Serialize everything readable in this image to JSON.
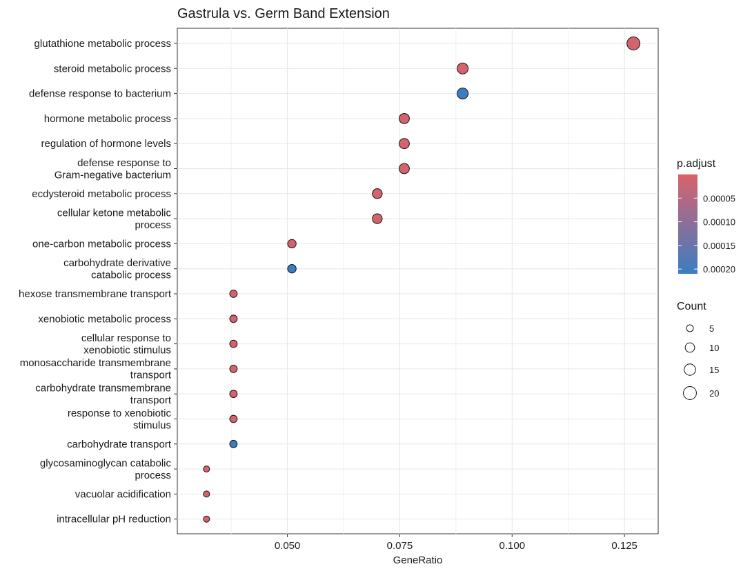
{
  "chart_data": {
    "type": "scatter",
    "title": "Gastrula vs. Germ Band Extension",
    "xlabel": "GeneRatio",
    "ylabel": "",
    "xlim": [
      0.0255,
      0.1325
    ],
    "xticks": [
      "0.050",
      "0.075",
      "0.100",
      "0.125"
    ],
    "xtick_values": [
      0.05,
      0.075,
      0.1,
      0.125
    ],
    "grid": true,
    "legend_placement": "right",
    "color_legend": {
      "title": "p.adjust",
      "low_color": "#d9626b",
      "high_color": "#3a7ebf",
      "range": [
        0.0,
        0.00021
      ],
      "ticks": [
        "0.00005",
        "0.00010",
        "0.00015",
        "0.00020"
      ],
      "tick_values": [
        5e-05,
        0.0001,
        0.00015,
        0.0002
      ]
    },
    "size_legend": {
      "title": "Count",
      "values": [
        5,
        10,
        15,
        20
      ],
      "labels": [
        "5",
        "10",
        "15",
        "20"
      ]
    },
    "points": [
      {
        "term": "glutathione metabolic process",
        "gene_ratio": 0.127,
        "count": 20,
        "p_adjust": 5e-06
      },
      {
        "term": "steroid metabolic process",
        "gene_ratio": 0.089,
        "count": 14,
        "p_adjust": 5e-06
      },
      {
        "term": "defense response to bacterium",
        "gene_ratio": 0.089,
        "count": 14,
        "p_adjust": 0.00021
      },
      {
        "term": "hormone metabolic process",
        "gene_ratio": 0.076,
        "count": 12,
        "p_adjust": 5e-06
      },
      {
        "term": "regulation of hormone levels",
        "gene_ratio": 0.076,
        "count": 12,
        "p_adjust": 5e-06
      },
      {
        "term": "defense response to\nGram-negative bacterium",
        "gene_ratio": 0.076,
        "count": 12,
        "p_adjust": 5e-06
      },
      {
        "term": "ecdysteroid metabolic process",
        "gene_ratio": 0.07,
        "count": 11,
        "p_adjust": 5e-06
      },
      {
        "term": "cellular ketone metabolic\nprocess",
        "gene_ratio": 0.07,
        "count": 11,
        "p_adjust": 5e-06
      },
      {
        "term": "one-carbon metabolic process",
        "gene_ratio": 0.051,
        "count": 8,
        "p_adjust": 5e-06
      },
      {
        "term": "carbohydrate derivative\ncatabolic process",
        "gene_ratio": 0.051,
        "count": 8,
        "p_adjust": 0.00021
      },
      {
        "term": "hexose transmembrane transport",
        "gene_ratio": 0.038,
        "count": 6,
        "p_adjust": 5e-06
      },
      {
        "term": "xenobiotic metabolic process",
        "gene_ratio": 0.038,
        "count": 6,
        "p_adjust": 5e-06
      },
      {
        "term": "cellular response to\nxenobiotic stimulus",
        "gene_ratio": 0.038,
        "count": 6,
        "p_adjust": 5e-06
      },
      {
        "term": "monosaccharide transmembrane\ntransport",
        "gene_ratio": 0.038,
        "count": 6,
        "p_adjust": 5e-06
      },
      {
        "term": "carbohydrate transmembrane\ntransport",
        "gene_ratio": 0.038,
        "count": 6,
        "p_adjust": 5e-06
      },
      {
        "term": "response to xenobiotic\nstimulus",
        "gene_ratio": 0.038,
        "count": 6,
        "p_adjust": 5e-06
      },
      {
        "term": "carbohydrate transport",
        "gene_ratio": 0.038,
        "count": 6,
        "p_adjust": 0.00021
      },
      {
        "term": "glycosaminoglycan catabolic\nprocess",
        "gene_ratio": 0.032,
        "count": 4,
        "p_adjust": 5e-06
      },
      {
        "term": "vacuolar acidification",
        "gene_ratio": 0.032,
        "count": 4,
        "p_adjust": 5e-06
      },
      {
        "term": "intracellular pH reduction",
        "gene_ratio": 0.032,
        "count": 4,
        "p_adjust": 5e-06
      }
    ]
  }
}
